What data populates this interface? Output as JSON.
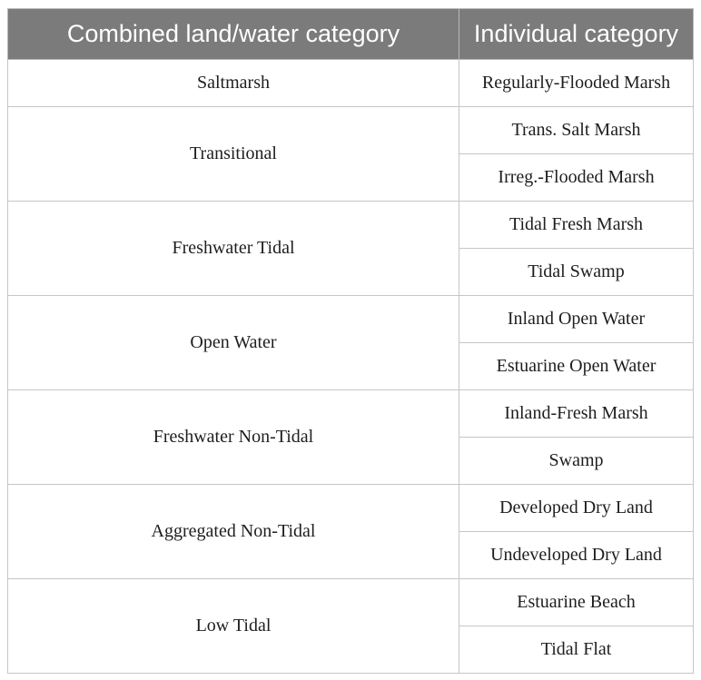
{
  "header": {
    "combined": "Combined land/water category",
    "individual": "Individual category"
  },
  "rows": [
    {
      "combined": "Saltmarsh",
      "individual": [
        "Regularly-Flooded Marsh"
      ]
    },
    {
      "combined": "Transitional",
      "individual": [
        "Trans. Salt Marsh",
        "Irreg.-Flooded Marsh"
      ]
    },
    {
      "combined": "Freshwater Tidal",
      "individual": [
        "Tidal Fresh Marsh",
        "Tidal Swamp"
      ]
    },
    {
      "combined": "Open Water",
      "individual": [
        "Inland Open Water",
        "Estuarine Open Water"
      ]
    },
    {
      "combined": "Freshwater Non-Tidal",
      "individual": [
        "Inland-Fresh Marsh",
        "Swamp"
      ]
    },
    {
      "combined": "Aggregated Non-Tidal",
      "individual": [
        "Developed Dry Land",
        "Undeveloped Dry Land"
      ]
    },
    {
      "combined": "Low Tidal",
      "individual": [
        "Estuarine Beach",
        "Tidal Flat"
      ]
    }
  ]
}
